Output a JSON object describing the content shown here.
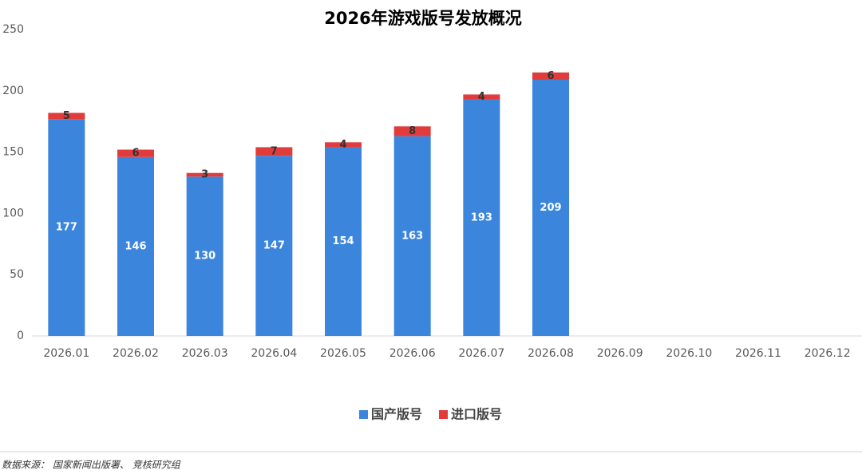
{
  "chart_data": {
    "type": "stacked_bar",
    "title": "2026年游戏版号发放概况",
    "categories": [
      "2026.01",
      "2026.02",
      "2026.03",
      "2026.04",
      "2026.05",
      "2026.06",
      "2026.07",
      "2026.08",
      "2026.09",
      "2026.10",
      "2026.11",
      "2026.12"
    ],
    "series": [
      {
        "name": "国产版号",
        "color": "#3b85dc",
        "values": [
          177,
          146,
          130,
          147,
          154,
          163,
          193,
          209,
          null,
          null,
          null,
          null
        ]
      },
      {
        "name": "进口版号",
        "color": "#e23b3b",
        "values": [
          5,
          6,
          3,
          7,
          4,
          8,
          4,
          6,
          null,
          null,
          null,
          null
        ]
      }
    ],
    "ylim": [
      0,
      250
    ],
    "yticks": [
      0,
      50,
      100,
      150,
      200,
      250
    ],
    "grid": false,
    "legend": "bottom",
    "source": "数据来源： 国家新闻出版署、 竞核研究组"
  }
}
